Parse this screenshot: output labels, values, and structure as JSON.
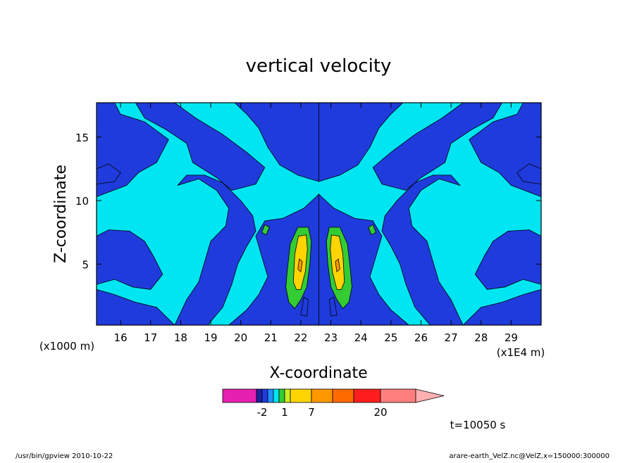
{
  "chart_data": {
    "type": "heatmap",
    "title": "vertical velocity",
    "xlabel": "X-coordinate",
    "ylabel": "Z-coordinate",
    "x_unit_left": "(x1000 m)",
    "x_unit_right": "(x1E4 m)",
    "xlim": [
      15.2,
      30.0
    ],
    "ylim": [
      0.2,
      17.7
    ],
    "x_ticks": [
      16,
      17,
      18,
      19,
      20,
      21,
      22,
      23,
      24,
      25,
      26,
      27,
      28,
      29
    ],
    "y_ticks": [
      5,
      10,
      15
    ],
    "colors": {
      "weak_negative": "#1f3bdc",
      "near_zero": "#00e5f2",
      "weak_positive": "#33cc33",
      "mid_positive": "#ffd400",
      "strong_positive": "#ff9800"
    },
    "features": [
      {
        "level": "mid_positive",
        "x": [
          21.8,
          22.2
        ],
        "z": [
          3.0,
          7.3
        ]
      },
      {
        "level": "mid_positive",
        "x": [
          23.0,
          23.4
        ],
        "z": [
          3.0,
          7.3
        ]
      },
      {
        "level": "weak_positive",
        "x": [
          21.6,
          22.3
        ],
        "z": [
          1.5,
          7.9
        ]
      },
      {
        "level": "weak_positive",
        "x": [
          22.9,
          23.6
        ],
        "z": [
          1.5,
          7.9
        ]
      }
    ],
    "colorbar": {
      "labels": [
        "-2",
        "1",
        "7",
        "20"
      ],
      "colors": [
        "#e620b0",
        "#1f1fa0",
        "#1f3bdc",
        "#1e90ff",
        "#00e5f2",
        "#33cc33",
        "#ccee22",
        "#ffd400",
        "#ff9800",
        "#ff6a00",
        "#ff1e1e",
        "#ff7f7f",
        "#ffb0b0"
      ]
    },
    "time_label": "t=10050 s"
  },
  "footer": {
    "left": "/usr/bin/gpview   2010-10-22",
    "right": "arare-earth_VelZ.nc@VelZ,x=150000:300000"
  }
}
